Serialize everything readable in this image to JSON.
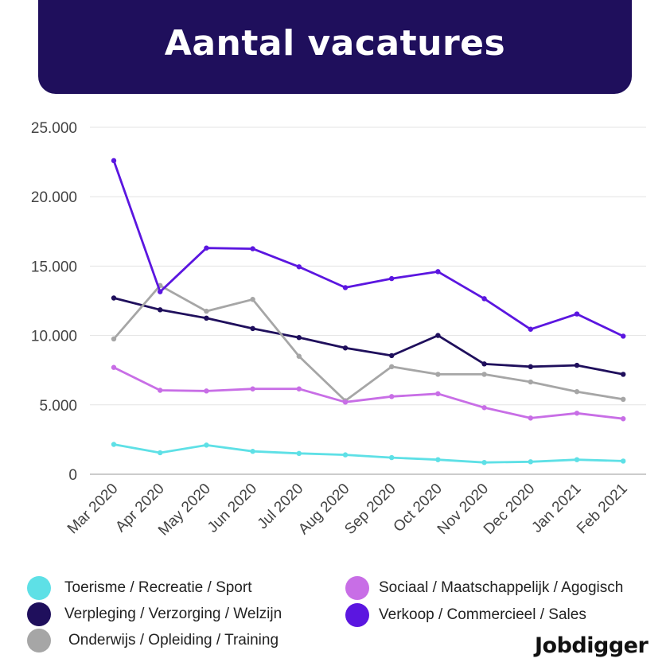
{
  "header": {
    "title": "Aantal vacatures"
  },
  "brand": {
    "name": "Jobdigger"
  },
  "chart_data": {
    "type": "line",
    "title": "Aantal vacatures",
    "categories": [
      "Mar 2020",
      "Apr 2020",
      "May 2020",
      "Jun 2020",
      "Jul 2020",
      "Aug 2020",
      "Sep 2020",
      "Oct 2020",
      "Nov 2020",
      "Dec 2020",
      "Jan 2021",
      "Feb 2021"
    ],
    "ylim": [
      0,
      25000
    ],
    "yticks": [
      0,
      5000,
      10000,
      15000,
      20000,
      25000
    ],
    "ytick_labels": [
      "0",
      "5.000",
      "10.000",
      "15.000",
      "20.000",
      "25.000"
    ],
    "grid": true,
    "legend_position": "bottom",
    "series": [
      {
        "name": "Toerisme / Recreatie / Sport",
        "color": "#5ee0e6",
        "values": [
          2150,
          1550,
          2100,
          1650,
          1500,
          1400,
          1200,
          1050,
          850,
          900,
          1050,
          950
        ]
      },
      {
        "name": "Verpleging / Verzorging / Welzijn",
        "color": "#1f0f5c",
        "values": [
          12700,
          11850,
          11250,
          10500,
          9850,
          9100,
          8550,
          10000,
          7950,
          7750,
          7850,
          7200
        ]
      },
      {
        "name": "Onderwijs / Opleiding / Training",
        "color": "#a6a6a6",
        "values": [
          9750,
          13600,
          11750,
          12600,
          8500,
          5300,
          7750,
          7200,
          7200,
          6650,
          5950,
          5400
        ]
      },
      {
        "name": "Sociaal / Maatschappelijk / Agogisch",
        "color": "#c86ee6",
        "values": [
          7700,
          6050,
          6000,
          6150,
          6150,
          5200,
          5600,
          5800,
          4800,
          4050,
          4400,
          4000
        ]
      },
      {
        "name": "Verkoop / Commercieel / Sales",
        "color": "#5b16e0",
        "values": [
          22600,
          13150,
          16300,
          16250,
          14950,
          13450,
          14100,
          14600,
          12650,
          10450,
          11550,
          9950
        ]
      }
    ]
  }
}
